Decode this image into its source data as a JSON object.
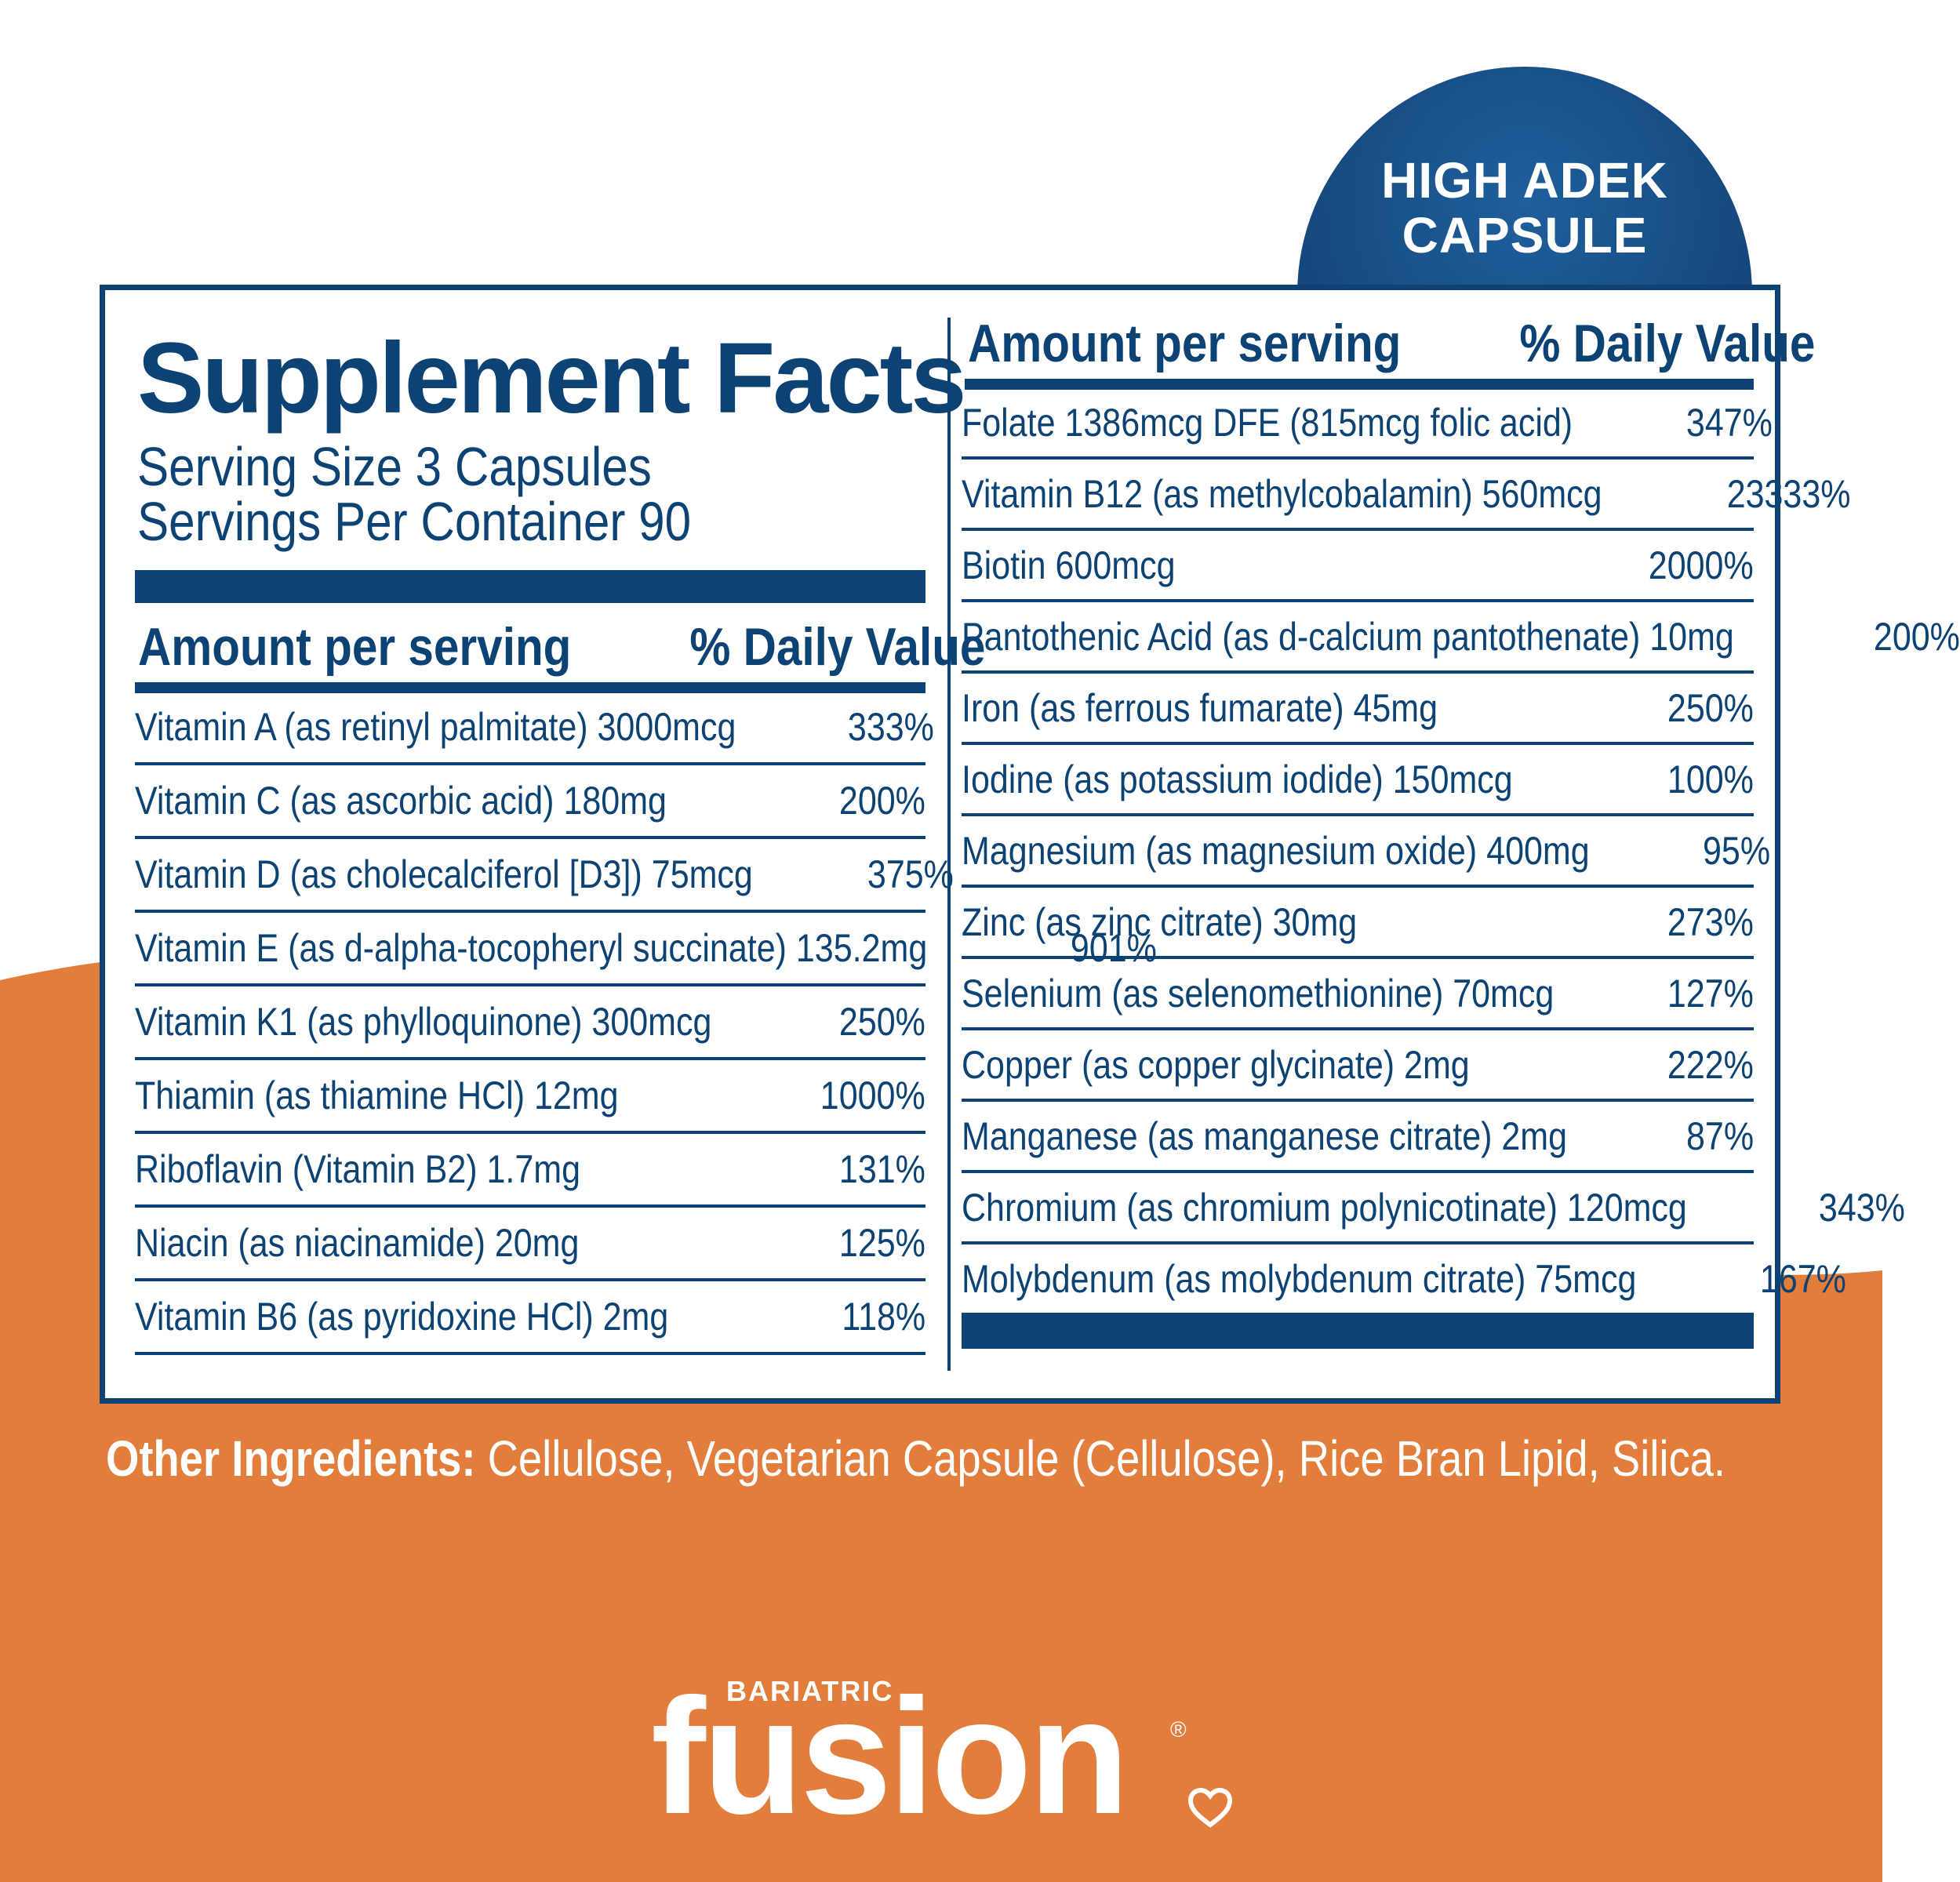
{
  "colors": {
    "navy": "#0d4374",
    "orange": "#e27d3c",
    "white": "#ffffff"
  },
  "badge": {
    "text": "HIGH ADEK\nCAPSULE"
  },
  "label": {
    "title": "Supplement Facts",
    "serving_size": "Serving Size 3 Capsules",
    "servings_per_container": "Servings Per Container 90",
    "header_amount": "Amount per serving",
    "header_dv": "% Daily Value"
  },
  "left_rows": [
    {
      "name": "Vitamin A (as retinyl palmitate) 3000mcg",
      "dv": "333%"
    },
    {
      "name": "Vitamin C (as ascorbic acid) 180mg",
      "dv": "200%"
    },
    {
      "name": "Vitamin D (as cholecalciferol [D3]) 75mcg",
      "dv": "375%"
    },
    {
      "name": "Vitamin E (as d-alpha-tocopheryl succinate) 135.2mg",
      "dv": "901%"
    },
    {
      "name": "Vitamin K1 (as phylloquinone) 300mcg",
      "dv": "250%"
    },
    {
      "name": "Thiamin (as thiamine HCl) 12mg",
      "dv": "1000%"
    },
    {
      "name": "Riboflavin (Vitamin B2) 1.7mg",
      "dv": "131%"
    },
    {
      "name": "Niacin (as niacinamide) 20mg",
      "dv": "125%"
    },
    {
      "name": "Vitamin B6 (as pyridoxine HCl) 2mg",
      "dv": "118%"
    }
  ],
  "right_rows": [
    {
      "name": "Folate 1386mcg DFE (815mcg folic acid)",
      "dv": "347%"
    },
    {
      "name": "Vitamin B12 (as methylcobalamin) 560mcg",
      "dv": "23333%"
    },
    {
      "name": "Biotin 600mcg",
      "dv": "2000%"
    },
    {
      "name": "Pantothenic Acid (as d-calcium pantothenate) 10mg",
      "dv": "200%"
    },
    {
      "name": "Iron (as ferrous fumarate) 45mg",
      "dv": "250%"
    },
    {
      "name": "Iodine (as potassium iodide) 150mcg",
      "dv": "100%"
    },
    {
      "name": "Magnesium (as magnesium oxide) 400mg",
      "dv": "95%"
    },
    {
      "name": "Zinc (as zinc citrate) 30mg",
      "dv": "273%"
    },
    {
      "name": "Selenium (as selenomethionine) 70mcg",
      "dv": "127%"
    },
    {
      "name": "Copper (as copper glycinate) 2mg",
      "dv": "222%"
    },
    {
      "name": "Manganese (as manganese citrate) 2mg",
      "dv": "87%"
    },
    {
      "name": "Chromium (as chromium polynicotinate) 120mcg",
      "dv": "343%"
    },
    {
      "name": "Molybdenum (as molybdenum citrate) 75mcg",
      "dv": "167%"
    }
  ],
  "other_ingredients": {
    "label": "Other Ingredients:",
    "text": " Cellulose, Vegetarian Capsule (Cellulose), Rice Bran Lipid, Silica."
  },
  "brand": {
    "top": "BARIATRIC",
    "name": "fusion",
    "registered": "®"
  }
}
